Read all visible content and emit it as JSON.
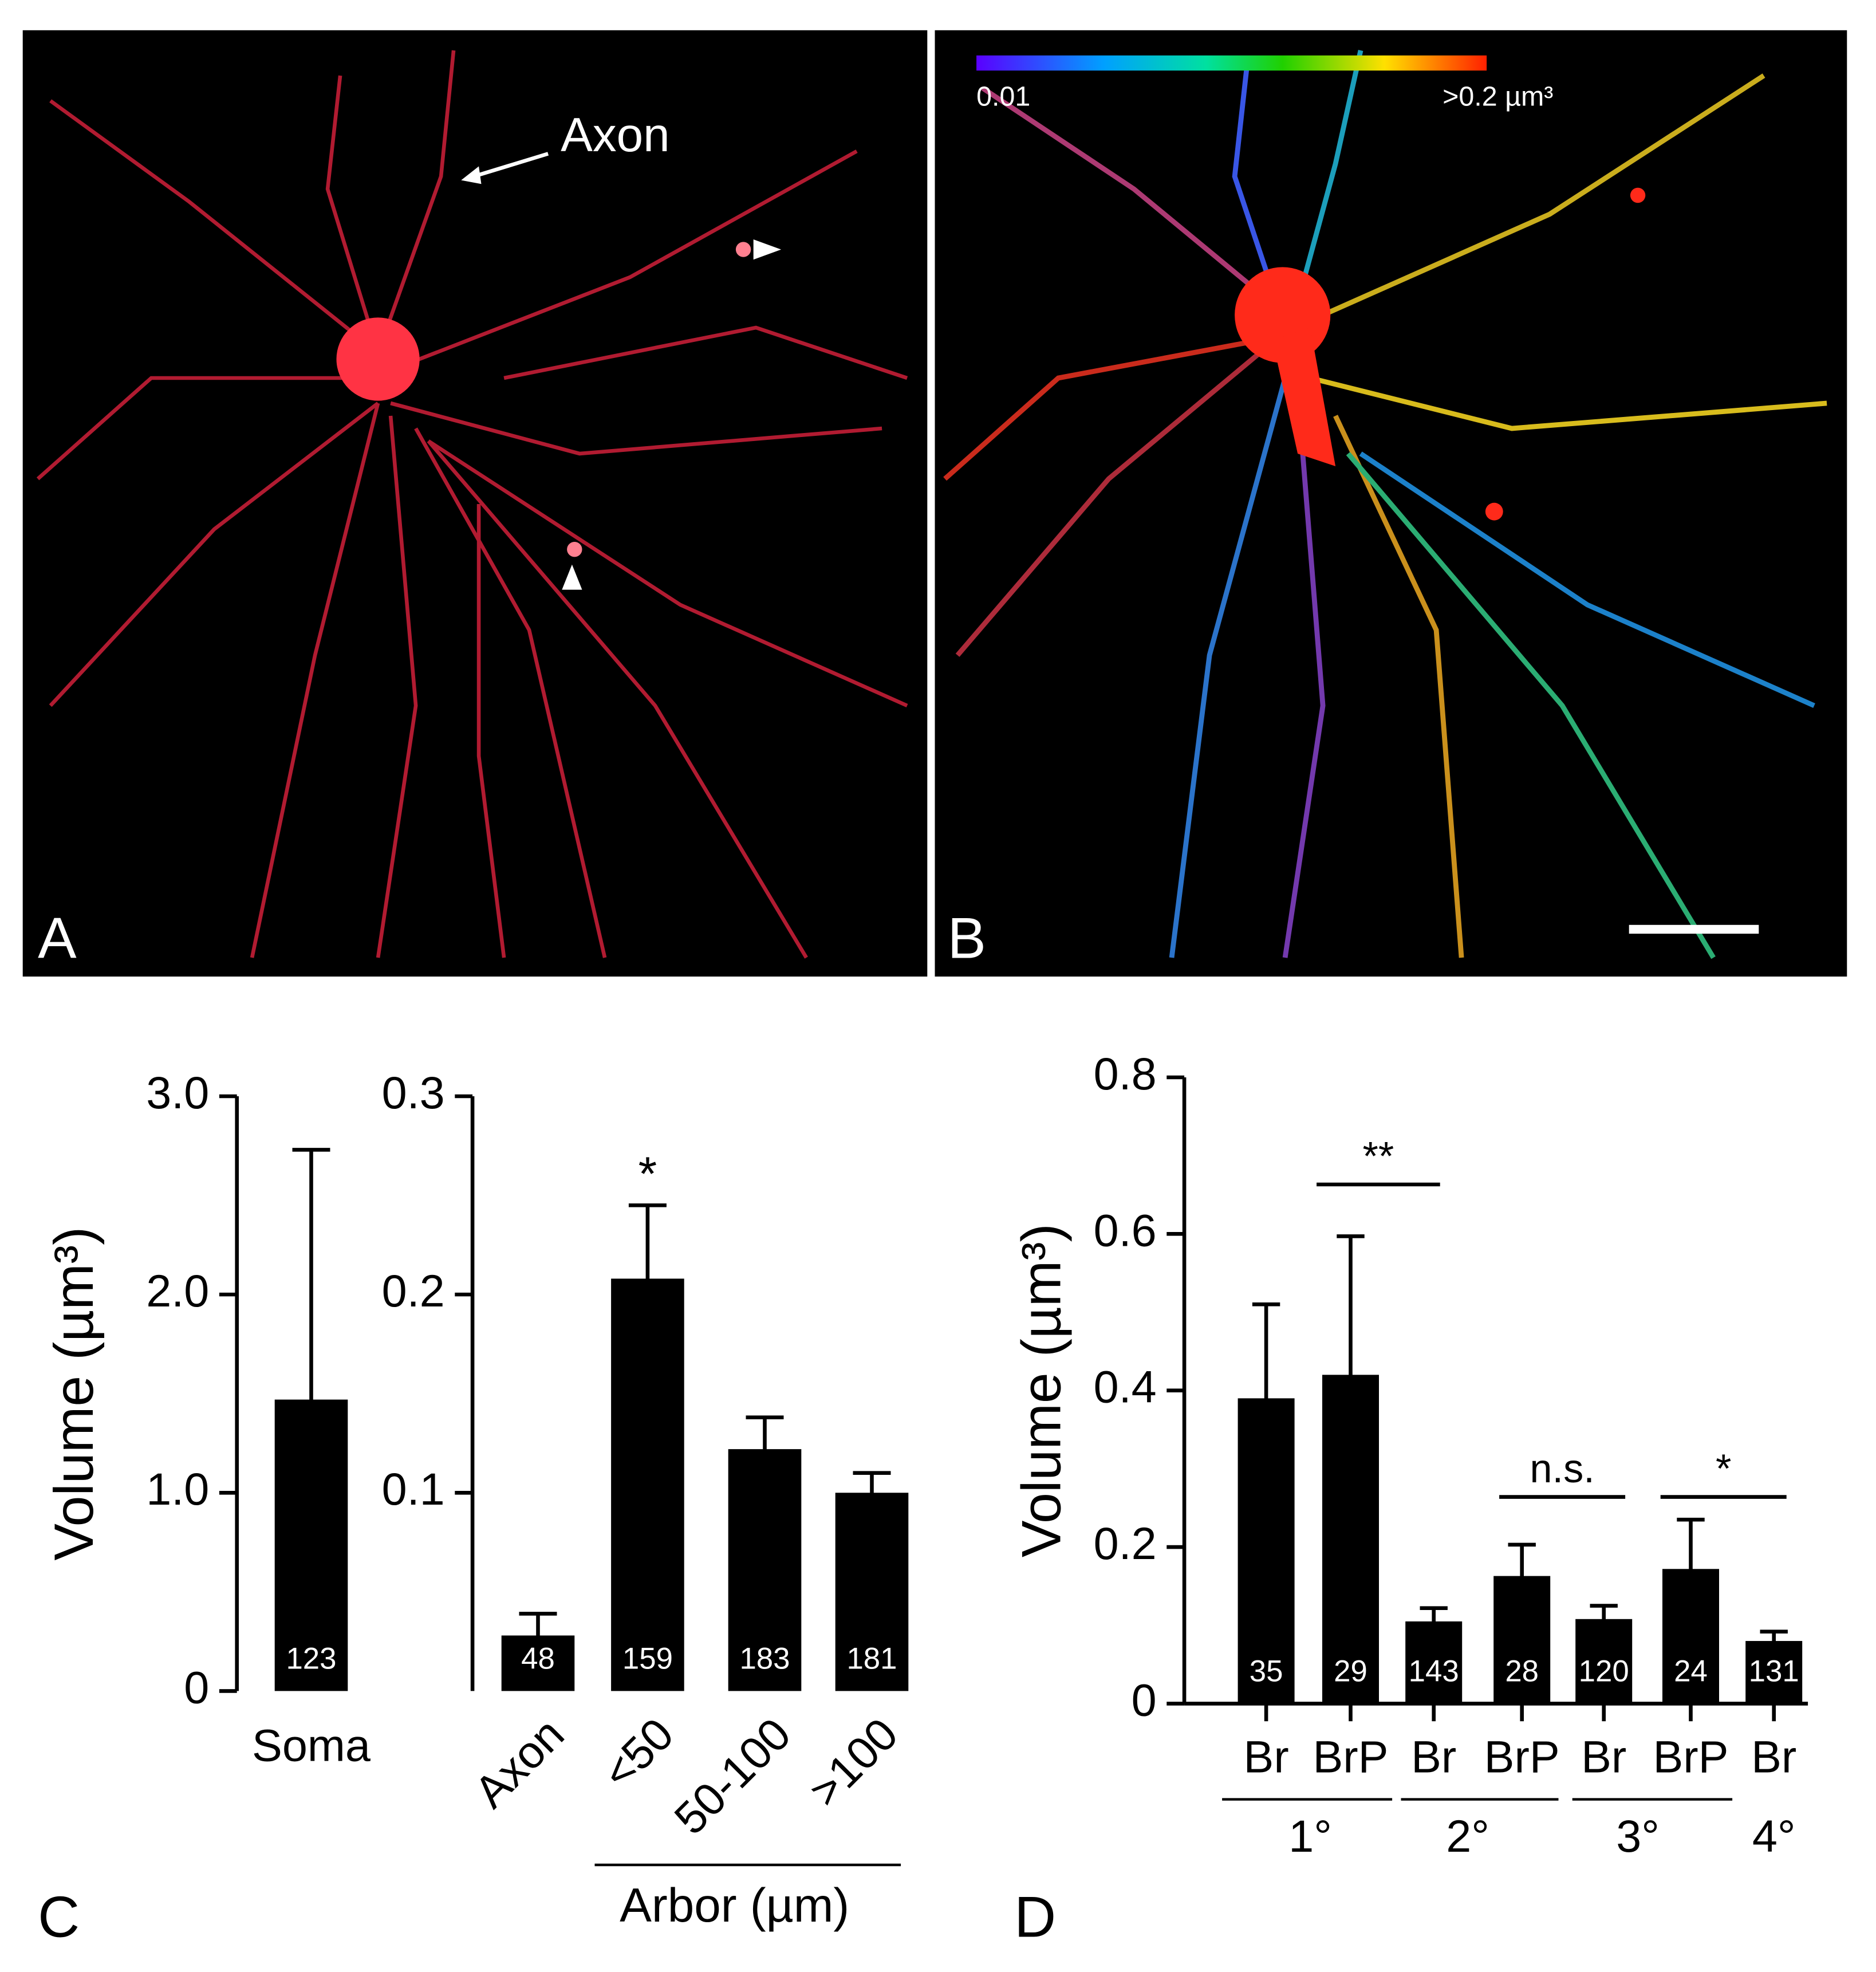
{
  "panels": {
    "a_label": "A",
    "axon_label": "Axon",
    "b_label": "B",
    "colorbar_min": "0.01",
    "colorbar_max": ">0.2 µm³"
  },
  "chart_data": [
    {
      "type": "bar",
      "panel_label": "C",
      "y_label": "Volume (µm³)",
      "color": "#000000",
      "categories": [
        "Soma"
      ],
      "values": [
        1.47
      ],
      "errors": [
        1.26
      ],
      "n_labels": [
        "123"
      ],
      "ylim": [
        0,
        3.0
      ],
      "yticks": [
        0,
        {
          "value": 1,
          "label": "1.0"
        },
        {
          "value": 2,
          "label": "2.0"
        },
        {
          "value": 3,
          "label": "3.0"
        }
      ]
    },
    {
      "type": "bar",
      "color": "#000000",
      "x_group_label": "Arbor (µm)",
      "annotation": "*",
      "categories": [
        "Axon",
        "<50",
        "50-100",
        ">100"
      ],
      "values": [
        0.028,
        0.208,
        0.122,
        0.1
      ],
      "errors": [
        0.011,
        0.037,
        0.016,
        0.01
      ],
      "n_labels": [
        "48",
        "159",
        "183",
        "181"
      ],
      "ylim": [
        0,
        0.3
      ],
      "yticks": [
        0.1,
        0.2,
        0.3
      ]
    },
    {
      "type": "bar",
      "panel_label": "D",
      "y_label": "Volume (µm³)",
      "color": "#000000",
      "categories": [
        "Br",
        "BrP",
        "Br",
        "BrP",
        "Br",
        "BrP",
        "Br"
      ],
      "values": [
        0.39,
        0.42,
        0.105,
        0.163,
        0.108,
        0.172,
        0.08
      ],
      "errors": [
        0.12,
        0.177,
        0.017,
        0.04,
        0.017,
        0.063,
        0.012
      ],
      "n_labels": [
        "35",
        "29",
        "143",
        "28",
        "120",
        "24",
        "131"
      ],
      "x_groups": [
        "1°",
        "2°",
        "3°",
        "4°"
      ],
      "significance": [
        "**",
        "n.s.",
        "*"
      ],
      "ylim": [
        0,
        0.8
      ],
      "yticks": [
        0,
        0.2,
        0.4,
        0.6,
        0.8
      ]
    }
  ]
}
